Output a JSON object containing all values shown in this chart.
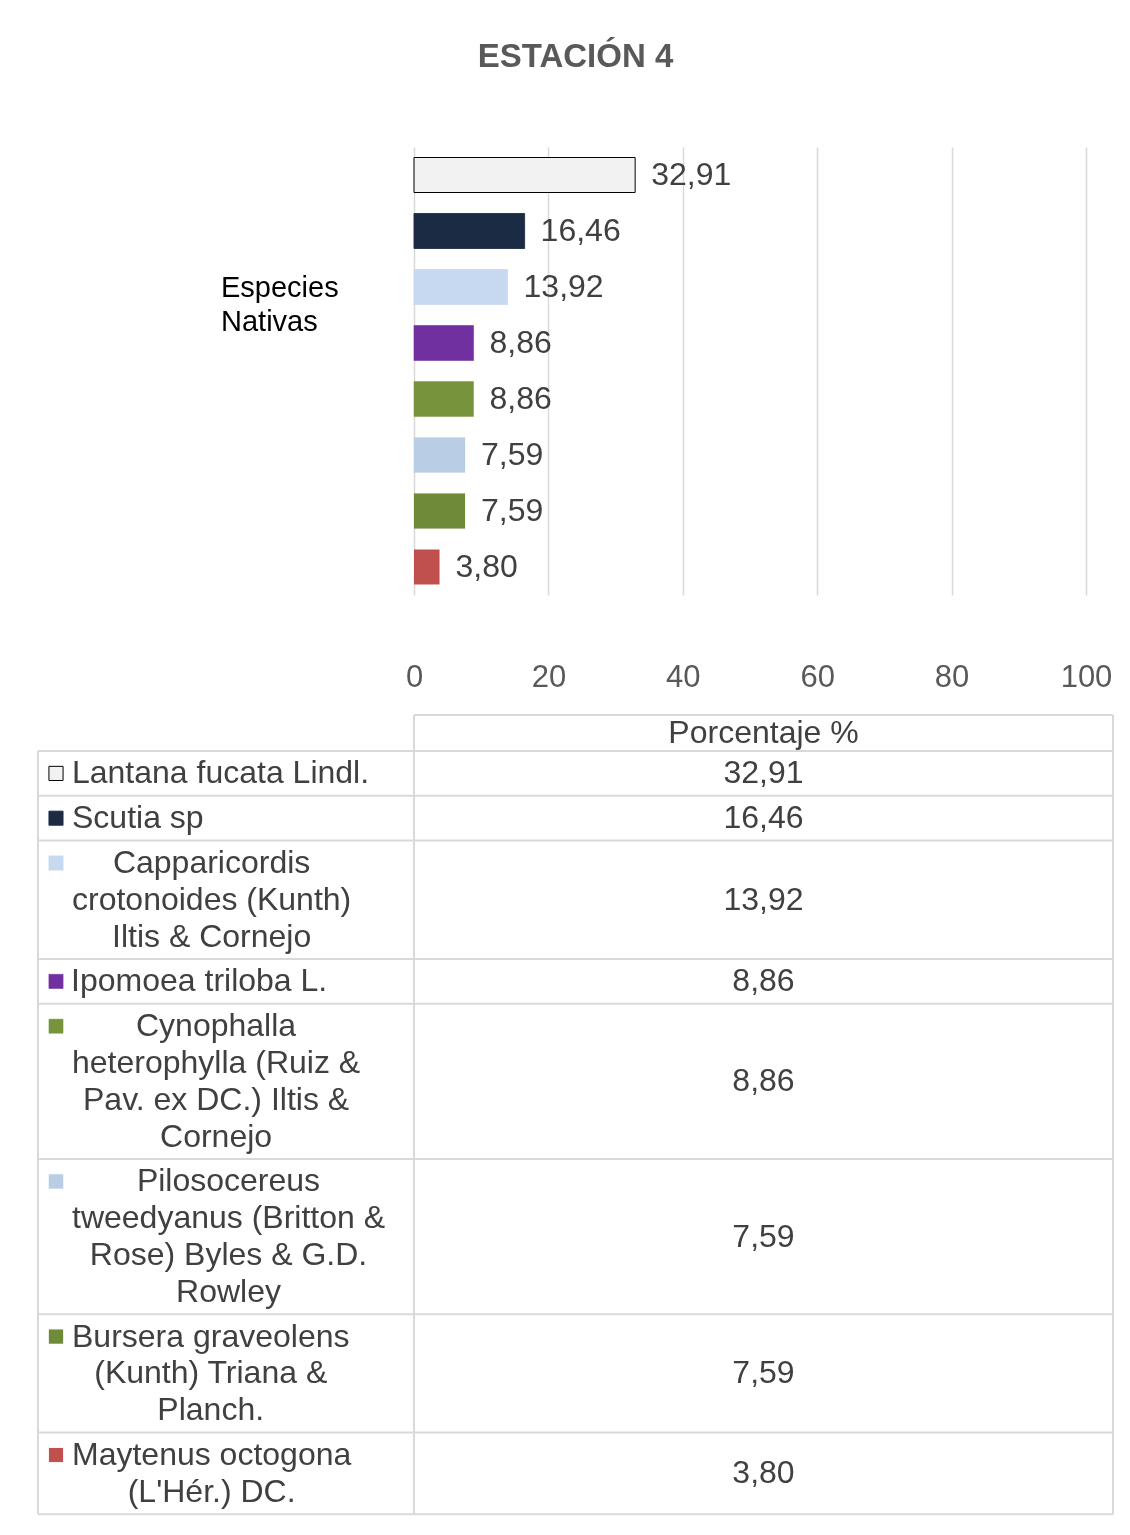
{
  "chart_data": {
    "type": "bar",
    "orientation": "horizontal",
    "title": "ESTACIÓN 4",
    "xlabel": "Porcentaje %",
    "annotations": [
      "Especies Nativas"
    ],
    "categories": [
      null,
      null,
      null,
      null,
      null,
      null,
      null,
      null
    ],
    "series": [
      {
        "name": "Lantana fucata Lindl.",
        "color": "#f2f2f2",
        "values": [
          32.91,
          null,
          null,
          null,
          null,
          null,
          null,
          null
        ],
        "value_labels": [
          "32,91",
          null,
          null,
          null,
          null,
          null,
          null,
          null
        ]
      },
      {
        "name": "Scutia sp",
        "color": "#1c2b44",
        "values": [
          null,
          16.46,
          null,
          null,
          null,
          null,
          null,
          null
        ],
        "value_labels": [
          null,
          "16,46",
          null,
          null,
          null,
          null,
          null,
          null
        ]
      },
      {
        "name": "Capparicordis crotonoides (Kunth) Iltis & Cornejo",
        "color": "#c6d9f1",
        "values": [
          null,
          null,
          13.92,
          null,
          null,
          null,
          null,
          null
        ],
        "value_labels": [
          null,
          null,
          "13,92",
          null,
          null,
          null,
          null,
          null
        ]
      },
      {
        "name": "Ipomoea triloba L.",
        "color": "#7030a0",
        "values": [
          null,
          null,
          null,
          8.86,
          null,
          null,
          null,
          null
        ],
        "value_labels": [
          null,
          null,
          null,
          "8,86",
          null,
          null,
          null,
          null
        ]
      },
      {
        "name": "Cynophalla heterophylla (Ruiz & Pav. ex DC.) Iltis & Cornejo",
        "color": "#77933c",
        "values": [
          null,
          null,
          null,
          null,
          8.86,
          null,
          null,
          null
        ],
        "value_labels": [
          null,
          null,
          null,
          null,
          "8,86",
          null,
          null,
          null
        ]
      },
      {
        "name": "Pilosocereus tweedyanus (Britton & Rose) Byles & G.D. Rowley",
        "color": "#b9cde5",
        "values": [
          null,
          null,
          null,
          null,
          null,
          7.59,
          null,
          null
        ],
        "value_labels": [
          null,
          null,
          null,
          null,
          null,
          "7,59",
          null,
          null
        ]
      },
      {
        "name": "Bursera graveolens (Kunth) Triana & Planch.",
        "color": "#6f8a38",
        "values": [
          null,
          null,
          null,
          null,
          null,
          null,
          7.59,
          null
        ],
        "value_labels": [
          null,
          null,
          null,
          null,
          null,
          null,
          "7,59",
          null
        ]
      },
      {
        "name": "Maytenus octogona (L'Hér.) DC.",
        "color": "#c0504d",
        "values": [
          null,
          null,
          null,
          null,
          null,
          null,
          null,
          3.8
        ],
        "value_labels": [
          null,
          null,
          null,
          null,
          null,
          null,
          null,
          "3,80"
        ]
      }
    ],
    "xlim": [
      0,
      100
    ],
    "xticks": [
      0,
      20,
      40,
      60,
      80,
      100
    ],
    "grid": "x",
    "legend": "bottom",
    "tick_labels": "x"
  }
}
